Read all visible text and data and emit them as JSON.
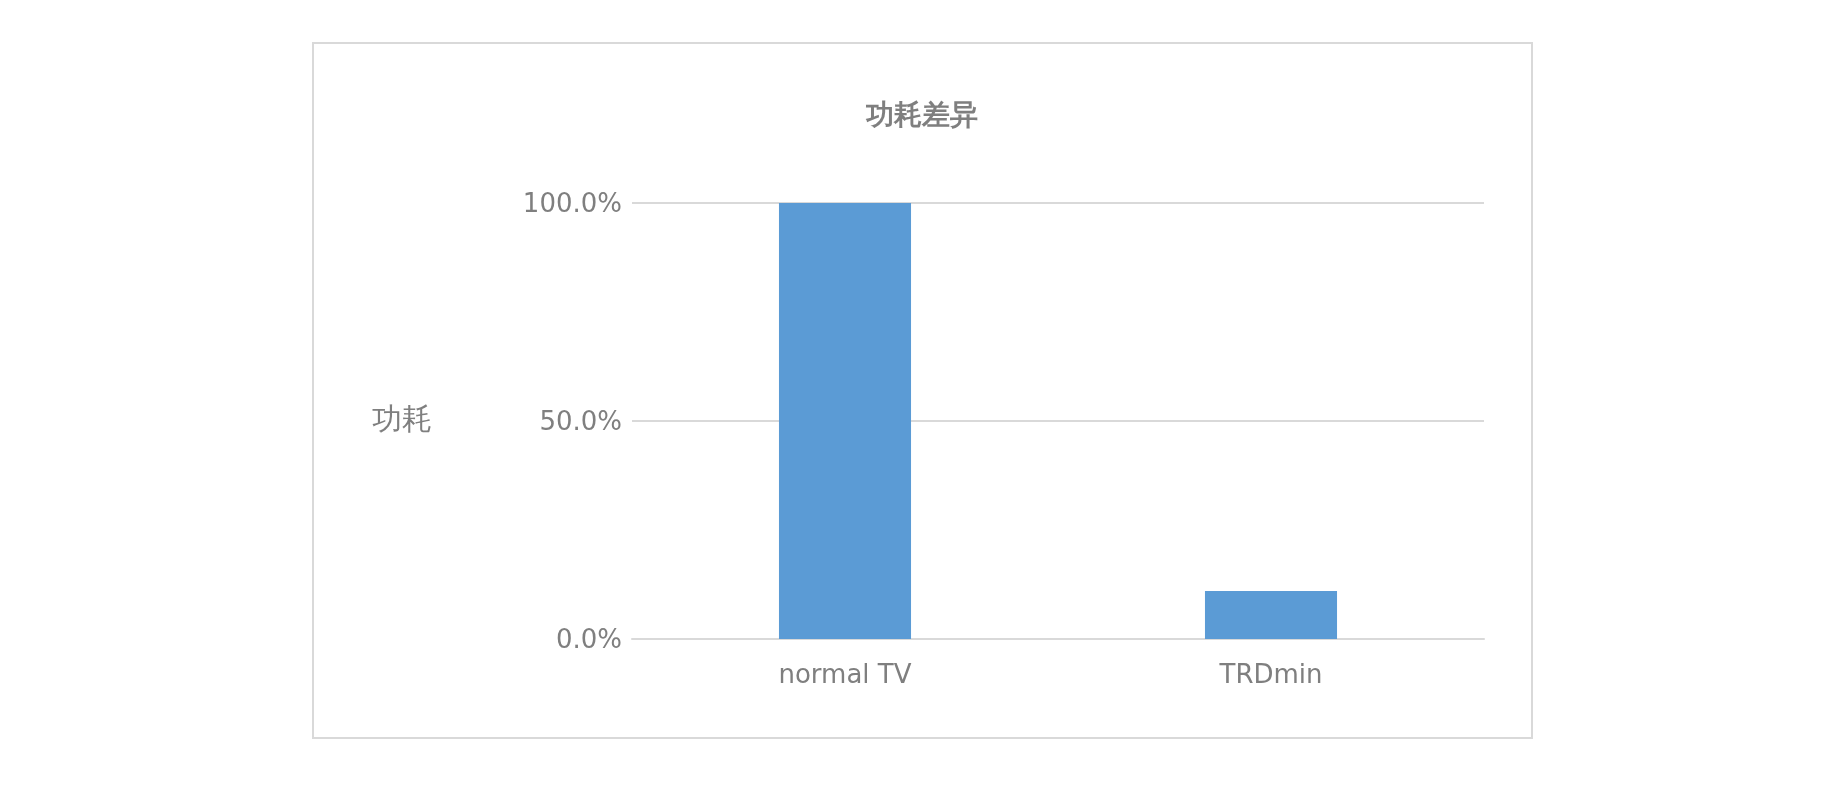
{
  "chart_data": {
    "type": "bar",
    "title": "功耗差异",
    "ylabel": "功耗",
    "categories": [
      "normal TV",
      "TRDmin"
    ],
    "values": [
      100,
      11
    ],
    "color": "#5b9bd5",
    "ylim": [
      0,
      100
    ],
    "yticks": [
      {
        "value": 0,
        "label": "0.0%"
      },
      {
        "value": 50,
        "label": "50.0%"
      },
      {
        "value": 100,
        "label": "100.0%"
      }
    ],
    "grid": "y"
  }
}
